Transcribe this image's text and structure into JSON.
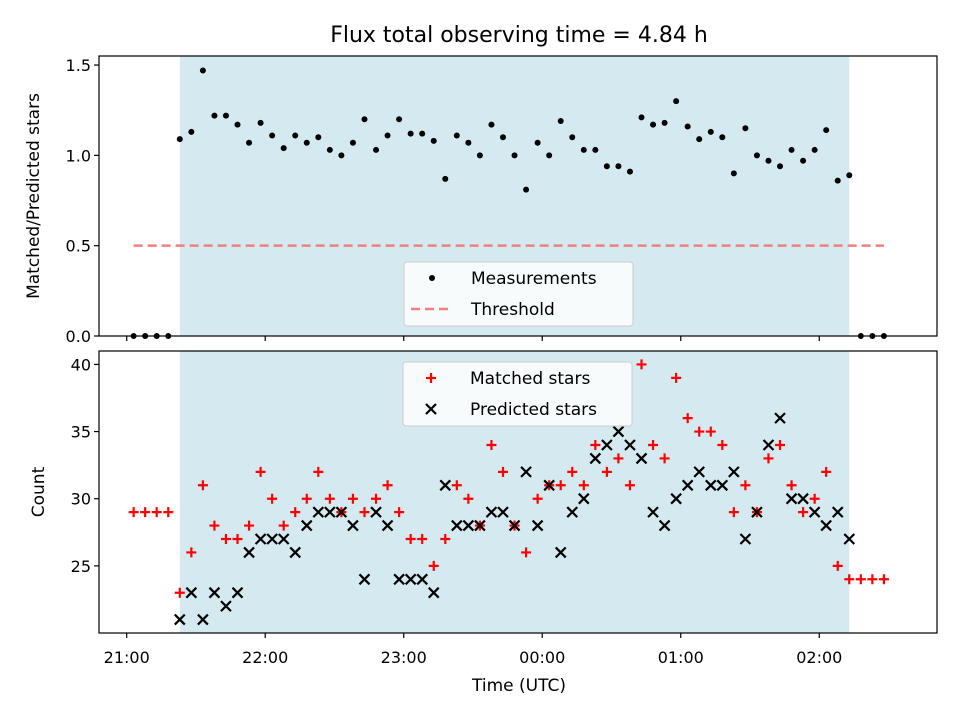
{
  "chart_data": {
    "title": "Flux total observing time = 4.84 h",
    "xlabel": "Time (UTC)",
    "xlim": [
      "20:48",
      "02:51"
    ],
    "xticks": [
      "21:00",
      "22:00",
      "23:00",
      "00:00",
      "01:00",
      "02:00"
    ],
    "shaded_span": [
      "21:23",
      "02:13"
    ],
    "panels": [
      {
        "type": "scatter",
        "ylabel": "Matched/Predicted stars",
        "ylim": [
          0,
          1.55
        ],
        "yticks": [
          "0.0",
          "0.5",
          "1.0",
          "1.5"
        ],
        "legend_position": "lower-center",
        "series": [
          {
            "name": "Measurements",
            "marker": "dot",
            "color": "#000000",
            "points": [
              [
                "21:03",
                0
              ],
              [
                "21:08",
                0
              ],
              [
                "21:13",
                0
              ],
              [
                "21:18",
                0
              ],
              [
                "21:23",
                1.09
              ],
              [
                "21:28",
                1.13
              ],
              [
                "21:33",
                1.47
              ],
              [
                "21:38",
                1.22
              ],
              [
                "21:43",
                1.22
              ],
              [
                "21:48",
                1.17
              ],
              [
                "21:53",
                1.07
              ],
              [
                "21:58",
                1.18
              ],
              [
                "22:03",
                1.11
              ],
              [
                "22:08",
                1.04
              ],
              [
                "22:13",
                1.11
              ],
              [
                "22:18",
                1.07
              ],
              [
                "22:23",
                1.1
              ],
              [
                "22:28",
                1.03
              ],
              [
                "22:33",
                1.0
              ],
              [
                "22:38",
                1.07
              ],
              [
                "22:43",
                1.2
              ],
              [
                "22:48",
                1.03
              ],
              [
                "22:53",
                1.11
              ],
              [
                "22:58",
                1.2
              ],
              [
                "23:03",
                1.12
              ],
              [
                "23:08",
                1.12
              ],
              [
                "23:13",
                1.08
              ],
              [
                "23:18",
                0.87
              ],
              [
                "23:23",
                1.11
              ],
              [
                "23:28",
                1.07
              ],
              [
                "23:33",
                1.0
              ],
              [
                "23:38",
                1.17
              ],
              [
                "23:43",
                1.1
              ],
              [
                "23:48",
                1.0
              ],
              [
                "23:53",
                0.81
              ],
              [
                "23:58",
                1.07
              ],
              [
                "00:03",
                1.0
              ],
              [
                "00:08",
                1.19
              ],
              [
                "00:13",
                1.1
              ],
              [
                "00:18",
                1.03
              ],
              [
                "00:23",
                1.03
              ],
              [
                "00:28",
                0.94
              ],
              [
                "00:33",
                0.94
              ],
              [
                "00:38",
                0.91
              ],
              [
                "00:43",
                1.21
              ],
              [
                "00:48",
                1.17
              ],
              [
                "00:53",
                1.18
              ],
              [
                "00:58",
                1.3
              ],
              [
                "01:03",
                1.16
              ],
              [
                "01:08",
                1.09
              ],
              [
                "01:13",
                1.13
              ],
              [
                "01:18",
                1.1
              ],
              [
                "01:23",
                0.9
              ],
              [
                "01:28",
                1.15
              ],
              [
                "01:33",
                1.0
              ],
              [
                "01:38",
                0.97
              ],
              [
                "01:43",
                0.94
              ],
              [
                "01:48",
                1.03
              ],
              [
                "01:53",
                0.97
              ],
              [
                "01:58",
                1.03
              ],
              [
                "02:03",
                1.14
              ],
              [
                "02:08",
                0.86
              ],
              [
                "02:13",
                0.89
              ],
              [
                "02:18",
                0
              ],
              [
                "02:23",
                0
              ],
              [
                "02:28",
                0
              ]
            ]
          },
          {
            "name": "Threshold",
            "marker": "dashed-line",
            "color": "#f08080",
            "points": [
              [
                "21:03",
                0.5
              ],
              [
                "02:28",
                0.5
              ]
            ]
          }
        ]
      },
      {
        "type": "scatter",
        "ylabel": "Count",
        "ylim": [
          20,
          41
        ],
        "yticks": [
          "25",
          "30",
          "35",
          "40"
        ],
        "legend_position": "upper-center",
        "series": [
          {
            "name": "Matched stars",
            "marker": "plus",
            "color": "#ff0000",
            "points": [
              [
                "21:03",
                29
              ],
              [
                "21:08",
                29
              ],
              [
                "21:13",
                29
              ],
              [
                "21:18",
                29
              ],
              [
                "21:23",
                23
              ],
              [
                "21:28",
                26
              ],
              [
                "21:33",
                31
              ],
              [
                "21:38",
                28
              ],
              [
                "21:43",
                27
              ],
              [
                "21:48",
                27
              ],
              [
                "21:53",
                28
              ],
              [
                "21:58",
                32
              ],
              [
                "22:03",
                30
              ],
              [
                "22:08",
                28
              ],
              [
                "22:13",
                29
              ],
              [
                "22:18",
                30
              ],
              [
                "22:23",
                32
              ],
              [
                "22:28",
                30
              ],
              [
                "22:33",
                29
              ],
              [
                "22:38",
                30
              ],
              [
                "22:43",
                29
              ],
              [
                "22:48",
                30
              ],
              [
                "22:53",
                31
              ],
              [
                "22:58",
                29
              ],
              [
                "23:03",
                27
              ],
              [
                "23:08",
                27
              ],
              [
                "23:13",
                25
              ],
              [
                "23:18",
                27
              ],
              [
                "23:23",
                31
              ],
              [
                "23:28",
                30
              ],
              [
                "23:33",
                28
              ],
              [
                "23:38",
                34
              ],
              [
                "23:43",
                32
              ],
              [
                "23:48",
                28
              ],
              [
                "23:53",
                26
              ],
              [
                "23:58",
                30
              ],
              [
                "00:03",
                31
              ],
              [
                "00:08",
                31
              ],
              [
                "00:13",
                32
              ],
              [
                "00:18",
                31
              ],
              [
                "00:23",
                34
              ],
              [
                "00:28",
                32
              ],
              [
                "00:33",
                33
              ],
              [
                "00:38",
                31
              ],
              [
                "00:43",
                40
              ],
              [
                "00:48",
                34
              ],
              [
                "00:53",
                33
              ],
              [
                "00:58",
                39
              ],
              [
                "01:03",
                36
              ],
              [
                "01:08",
                35
              ],
              [
                "01:13",
                35
              ],
              [
                "01:18",
                34
              ],
              [
                "01:23",
                29
              ],
              [
                "01:28",
                31
              ],
              [
                "01:33",
                29
              ],
              [
                "01:38",
                33
              ],
              [
                "01:43",
                34
              ],
              [
                "01:48",
                31
              ],
              [
                "01:53",
                29
              ],
              [
                "01:58",
                30
              ],
              [
                "02:03",
                32
              ],
              [
                "02:08",
                25
              ],
              [
                "02:13",
                24
              ],
              [
                "02:18",
                24
              ],
              [
                "02:23",
                24
              ],
              [
                "02:28",
                24
              ]
            ]
          },
          {
            "name": "Predicted stars",
            "marker": "x",
            "color": "#000000",
            "points": [
              [
                "21:23",
                21
              ],
              [
                "21:28",
                23
              ],
              [
                "21:33",
                21
              ],
              [
                "21:38",
                23
              ],
              [
                "21:43",
                22
              ],
              [
                "21:48",
                23
              ],
              [
                "21:53",
                26
              ],
              [
                "21:58",
                27
              ],
              [
                "22:03",
                27
              ],
              [
                "22:08",
                27
              ],
              [
                "22:13",
                26
              ],
              [
                "22:18",
                28
              ],
              [
                "22:23",
                29
              ],
              [
                "22:28",
                29
              ],
              [
                "22:33",
                29
              ],
              [
                "22:38",
                28
              ],
              [
                "22:43",
                24
              ],
              [
                "22:48",
                29
              ],
              [
                "22:53",
                28
              ],
              [
                "22:58",
                24
              ],
              [
                "23:03",
                24
              ],
              [
                "23:08",
                24
              ],
              [
                "23:13",
                23
              ],
              [
                "23:18",
                31
              ],
              [
                "23:23",
                28
              ],
              [
                "23:28",
                28
              ],
              [
                "23:33",
                28
              ],
              [
                "23:38",
                29
              ],
              [
                "23:43",
                29
              ],
              [
                "23:48",
                28
              ],
              [
                "23:53",
                32
              ],
              [
                "23:58",
                28
              ],
              [
                "00:03",
                31
              ],
              [
                "00:08",
                26
              ],
              [
                "00:13",
                29
              ],
              [
                "00:18",
                30
              ],
              [
                "00:23",
                33
              ],
              [
                "00:28",
                34
              ],
              [
                "00:33",
                35
              ],
              [
                "00:38",
                34
              ],
              [
                "00:43",
                33
              ],
              [
                "00:48",
                29
              ],
              [
                "00:53",
                28
              ],
              [
                "00:58",
                30
              ],
              [
                "01:03",
                31
              ],
              [
                "01:08",
                32
              ],
              [
                "01:13",
                31
              ],
              [
                "01:18",
                31
              ],
              [
                "01:23",
                32
              ],
              [
                "01:28",
                27
              ],
              [
                "01:33",
                29
              ],
              [
                "01:38",
                34
              ],
              [
                "01:43",
                36
              ],
              [
                "01:48",
                30
              ],
              [
                "01:53",
                30
              ],
              [
                "01:58",
                29
              ],
              [
                "02:03",
                28
              ],
              [
                "02:08",
                29
              ],
              [
                "02:13",
                27
              ]
            ]
          }
        ]
      }
    ]
  }
}
